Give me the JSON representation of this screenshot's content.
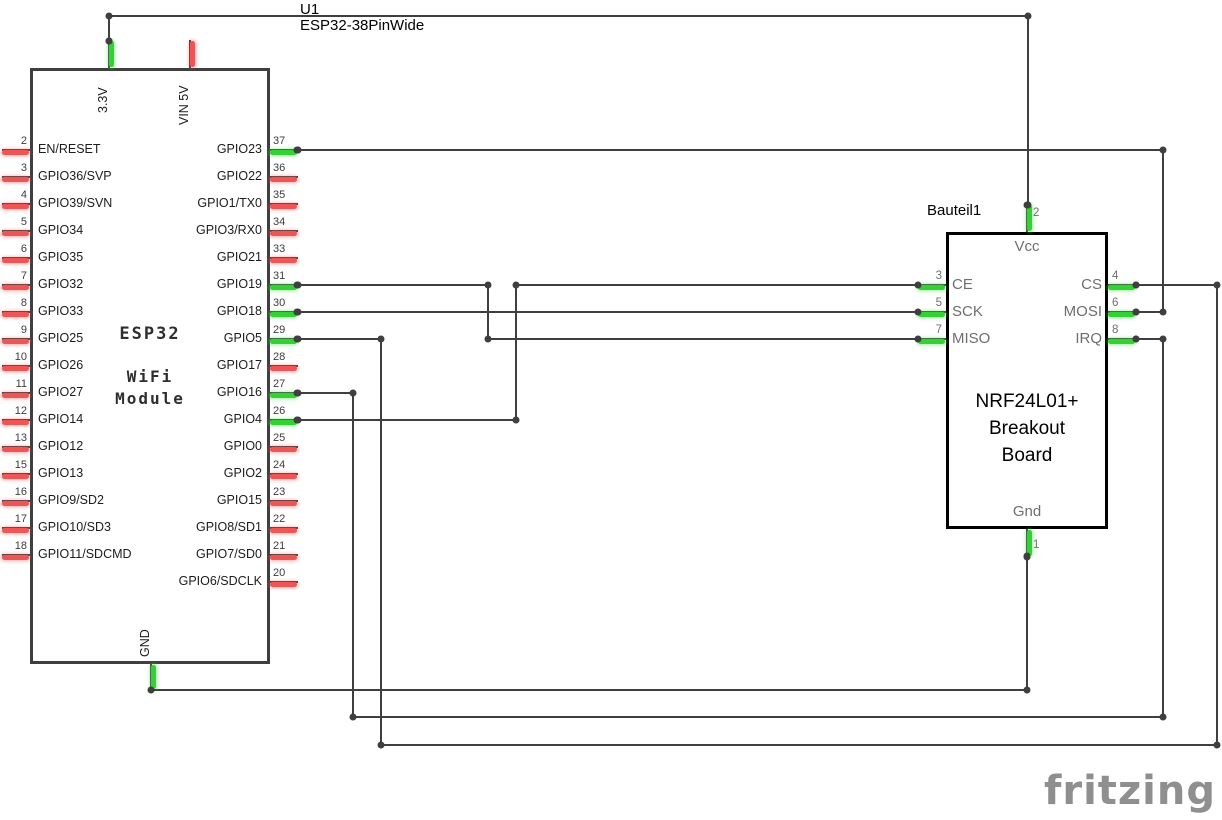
{
  "schematic": {
    "u1_refdes": "U1",
    "u1_part": "ESP32-38PinWide",
    "esp32": {
      "title": "ESP32",
      "subtitle_line1": "WiFi",
      "subtitle_line2": "Module",
      "top_pins": [
        {
          "num": "",
          "label": "3.3V",
          "connected": true
        },
        {
          "num": "",
          "label": "VIN 5V",
          "connected": false
        }
      ],
      "bottom_pins": [
        {
          "num": "",
          "label": "GND",
          "connected": true
        }
      ],
      "left_pins": [
        {
          "num": "2",
          "label": "EN/RESET",
          "connected": false
        },
        {
          "num": "3",
          "label": "GPIO36/SVP",
          "connected": false
        },
        {
          "num": "4",
          "label": "GPIO39/SVN",
          "connected": false
        },
        {
          "num": "5",
          "label": "GPIO34",
          "connected": false
        },
        {
          "num": "6",
          "label": "GPIO35",
          "connected": false
        },
        {
          "num": "7",
          "label": "GPIO32",
          "connected": false
        },
        {
          "num": "8",
          "label": "GPIO33",
          "connected": false
        },
        {
          "num": "9",
          "label": "GPIO25",
          "connected": false
        },
        {
          "num": "10",
          "label": "GPIO26",
          "connected": false
        },
        {
          "num": "11",
          "label": "GPIO27",
          "connected": false
        },
        {
          "num": "12",
          "label": "GPIO14",
          "connected": false
        },
        {
          "num": "13",
          "label": "GPIO12",
          "connected": false
        },
        {
          "num": "15",
          "label": "GPIO13",
          "connected": false
        },
        {
          "num": "16",
          "label": "GPIO9/SD2",
          "connected": false
        },
        {
          "num": "17",
          "label": "GPIO10/SD3",
          "connected": false
        },
        {
          "num": "18",
          "label": "GPIO11/SDCMD",
          "connected": false
        }
      ],
      "right_pins": [
        {
          "num": "37",
          "label": "GPIO23",
          "connected": true
        },
        {
          "num": "36",
          "label": "GPIO22",
          "connected": false
        },
        {
          "num": "35",
          "label": "GPIO1/TX0",
          "connected": false
        },
        {
          "num": "34",
          "label": "GPIO3/RX0",
          "connected": false
        },
        {
          "num": "33",
          "label": "GPIO21",
          "connected": false
        },
        {
          "num": "31",
          "label": "GPIO19",
          "connected": true
        },
        {
          "num": "30",
          "label": "GPIO18",
          "connected": true
        },
        {
          "num": "29",
          "label": "GPIO5",
          "connected": true
        },
        {
          "num": "28",
          "label": "GPIO17",
          "connected": false
        },
        {
          "num": "27",
          "label": "GPIO16",
          "connected": true
        },
        {
          "num": "26",
          "label": "GPIO4",
          "connected": true
        },
        {
          "num": "25",
          "label": "GPIO0",
          "connected": false
        },
        {
          "num": "24",
          "label": "GPIO2",
          "connected": false
        },
        {
          "num": "23",
          "label": "GPIO15",
          "connected": false
        },
        {
          "num": "22",
          "label": "GPIO8/SD1",
          "connected": false
        },
        {
          "num": "21",
          "label": "GPIO7/SD0",
          "connected": false
        },
        {
          "num": "20",
          "label": "GPIO6/SDCLK",
          "connected": false
        }
      ]
    },
    "nrf": {
      "refdes": "Bauteil1",
      "title_line1": "NRF24L01+",
      "title_line2": "Breakout",
      "title_line3": "Board",
      "top_pin": {
        "num": "2",
        "label": "Vcc",
        "connected": true
      },
      "bottom_pin": {
        "num": "1",
        "label": "Gnd",
        "connected": true
      },
      "left_pins": [
        {
          "num": "3",
          "label": "CE",
          "connected": true
        },
        {
          "num": "5",
          "label": "SCK",
          "connected": true
        },
        {
          "num": "7",
          "label": "MISO",
          "connected": true
        }
      ],
      "right_pins": [
        {
          "num": "4",
          "label": "CS",
          "connected": true
        },
        {
          "num": "6",
          "label": "MOSI",
          "connected": true
        },
        {
          "num": "8",
          "label": "IRQ",
          "connected": true
        }
      ]
    },
    "nets": [
      {
        "id": "3v3-vcc",
        "from": "U1 3.3V",
        "to": "Bauteil1 Vcc"
      },
      {
        "id": "gpio23-mosi",
        "from": "U1 GPIO23",
        "to": "Bauteil1 MOSI"
      },
      {
        "id": "gpio19-miso",
        "from": "U1 GPIO19",
        "to": "Bauteil1 MISO"
      },
      {
        "id": "gpio18-sck",
        "from": "U1 GPIO18",
        "to": "Bauteil1 SCK"
      },
      {
        "id": "gpio4-ce",
        "from": "U1 GPIO4",
        "to": "Bauteil1 CE"
      },
      {
        "id": "gpio5-cs",
        "from": "U1 GPIO5",
        "to": "Bauteil1 CS"
      },
      {
        "id": "gpio16-irq",
        "from": "U1 GPIO16",
        "to": "Bauteil1 IRQ"
      },
      {
        "id": "gnd-gnd",
        "from": "U1 GND",
        "to": "Bauteil1 Gnd"
      }
    ],
    "watermark": "fritzing",
    "colors": {
      "wire": "#3F3F3F",
      "pin_connected": "#33D133",
      "pin_unconnected": "#F05555",
      "component_border": "#3F3F3F",
      "nrf_border": "#000000"
    }
  }
}
